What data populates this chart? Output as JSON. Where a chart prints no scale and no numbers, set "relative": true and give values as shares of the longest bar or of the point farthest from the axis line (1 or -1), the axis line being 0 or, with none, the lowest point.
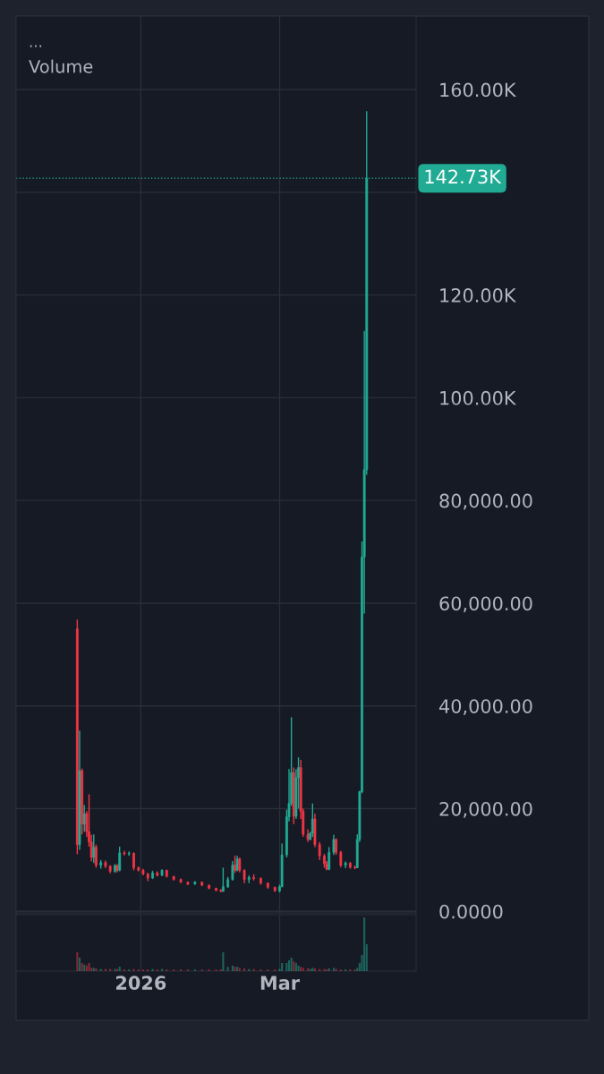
{
  "chart_data": [
    {
      "type": "candlestick",
      "annotations": [
        "..."
      ],
      "x": [
        "2025-12-05",
        "2025-12-06",
        "2025-12-07",
        "2025-12-08",
        "2025-12-09",
        "2025-12-10",
        "2025-12-11",
        "2025-12-12",
        "2025-12-13",
        "2025-12-15",
        "2025-12-17",
        "2025-12-19",
        "2025-12-21",
        "2025-12-22",
        "2025-12-23",
        "2025-12-25",
        "2025-12-27",
        "2025-12-29",
        "2025-12-31",
        "2026-01-02",
        "2026-01-04",
        "2026-01-06",
        "2026-01-08",
        "2026-01-10",
        "2026-01-12",
        "2026-01-15",
        "2026-01-18",
        "2026-01-21",
        "2026-01-24",
        "2026-01-27",
        "2026-01-30",
        "2026-02-02",
        "2026-02-04",
        "2026-02-05",
        "2026-02-07",
        "2026-02-09",
        "2026-02-10",
        "2026-02-11",
        "2026-02-12",
        "2026-02-14",
        "2026-02-16",
        "2026-02-18",
        "2026-02-21",
        "2026-02-24",
        "2026-02-27",
        "2026-03-01",
        "2026-03-02",
        "2026-03-04",
        "2026-03-05",
        "2026-03-06",
        "2026-03-07",
        "2026-03-08",
        "2026-03-09",
        "2026-03-10",
        "2026-03-11",
        "2026-03-13",
        "2026-03-14",
        "2026-03-15",
        "2026-03-16",
        "2026-03-18",
        "2026-03-20",
        "2026-03-21",
        "2026-03-22",
        "2026-03-24",
        "2026-03-25",
        "2026-03-27",
        "2026-03-29",
        "2026-03-31",
        "2026-04-02",
        "2026-04-03",
        "2026-04-04",
        "2026-04-05",
        "2026-04-06",
        "2026-04-07"
      ],
      "ohlc": [
        [
          55000,
          56800,
          11100,
          13000
        ],
        [
          13000,
          35200,
          12000,
          27400
        ],
        [
          27400,
          27800,
          15000,
          17000
        ],
        [
          17000,
          20700,
          15500,
          19000
        ],
        [
          19000,
          19500,
          14500,
          15500
        ],
        [
          15500,
          22800,
          12600,
          13500
        ],
        [
          13500,
          14900,
          9700,
          10500
        ],
        [
          10500,
          15000,
          9400,
          12500
        ],
        [
          12500,
          13000,
          8500,
          9000
        ],
        [
          9000,
          10000,
          8300,
          9500
        ],
        [
          9500,
          9900,
          8400,
          8800
        ],
        [
          8800,
          9000,
          7400,
          7800
        ],
        [
          7800,
          9200,
          7500,
          8900
        ],
        [
          8900,
          9200,
          7600,
          8000
        ],
        [
          8000,
          12600,
          7800,
          11400
        ],
        [
          11400,
          11800,
          10900,
          11200
        ],
        [
          11200,
          11700,
          10800,
          11300
        ],
        [
          11300,
          11500,
          8000,
          8500
        ],
        [
          8500,
          8700,
          7800,
          8000
        ],
        [
          8000,
          8300,
          7000,
          7300
        ],
        [
          7300,
          7500,
          5900,
          6500
        ],
        [
          6500,
          7900,
          6300,
          7500
        ],
        [
          7500,
          7800,
          6800,
          7000
        ],
        [
          7000,
          8200,
          6900,
          8000
        ],
        [
          8000,
          8100,
          6600,
          6800
        ],
        [
          6800,
          6900,
          6000,
          6200
        ],
        [
          6200,
          6400,
          5500,
          5700
        ],
        [
          5700,
          5800,
          5100,
          5300
        ],
        [
          5300,
          5900,
          5200,
          5700
        ],
        [
          5700,
          5800,
          4900,
          5100
        ],
        [
          5100,
          5200,
          4300,
          4500
        ],
        [
          4500,
          4600,
          3900,
          4100
        ],
        [
          4100,
          4300,
          3700,
          3900
        ],
        [
          3900,
          8500,
          3800,
          4800
        ],
        [
          4800,
          6700,
          4600,
          6200
        ],
        [
          6200,
          9800,
          6000,
          9000
        ],
        [
          9000,
          10900,
          7500,
          8000
        ],
        [
          8000,
          10800,
          7800,
          10200
        ],
        [
          10200,
          10500,
          7600,
          8000
        ],
        [
          8000,
          8200,
          5500,
          6200
        ],
        [
          6200,
          7000,
          5500,
          6600
        ],
        [
          6600,
          7200,
          6000,
          6400
        ],
        [
          6400,
          6600,
          5200,
          5500
        ],
        [
          5500,
          5600,
          4400,
          4700
        ],
        [
          4700,
          4800,
          3800,
          4000
        ],
        [
          4000,
          5200,
          3700,
          4800
        ],
        [
          4800,
          13200,
          4700,
          11000
        ],
        [
          11000,
          19800,
          10500,
          18400
        ],
        [
          18400,
          27700,
          17500,
          21000
        ],
        [
          21000,
          37800,
          20500,
          27000
        ],
        [
          27000,
          28000,
          17000,
          18500
        ],
        [
          18500,
          27700,
          18000,
          26000
        ],
        [
          26000,
          30000,
          20000,
          28000
        ],
        [
          28000,
          29500,
          18000,
          19500
        ],
        [
          19500,
          20000,
          14500,
          15000
        ],
        [
          15000,
          16000,
          13500,
          14000
        ],
        [
          14000,
          15500,
          13800,
          15200
        ],
        [
          15200,
          21000,
          14500,
          18000
        ],
        [
          18000,
          19000,
          12500,
          13000
        ],
        [
          13000,
          13500,
          10000,
          10800
        ],
        [
          10800,
          11200,
          8500,
          9300
        ],
        [
          9300,
          9800,
          8000,
          8200
        ],
        [
          8200,
          12500,
          8000,
          11500
        ],
        [
          11500,
          14900,
          11000,
          14000
        ],
        [
          14000,
          14200,
          11000,
          11500
        ],
        [
          11500,
          11800,
          8600,
          9000
        ],
        [
          9000,
          9700,
          8400,
          9400
        ],
        [
          9400,
          9600,
          8300,
          8600
        ],
        [
          8600,
          8900,
          8200,
          8500
        ],
        [
          8500,
          15000,
          8400,
          14000
        ],
        [
          14000,
          23500,
          13500,
          23300
        ],
        [
          23300,
          72000,
          23000,
          69000
        ],
        [
          69000,
          113000,
          58000,
          86000
        ],
        [
          86000,
          155800,
          85000,
          142730
        ]
      ],
      "colors": [
        "#f23645",
        "#22ab94",
        "#f23645",
        "#22ab94",
        "#f23645",
        "#f23645",
        "#f23645",
        "#22ab94",
        "#f23645",
        "#22ab94",
        "#f23645",
        "#f23645",
        "#22ab94",
        "#f23645",
        "#22ab94",
        "#f23645",
        "#22ab94",
        "#f23645",
        "#f23645",
        "#f23645",
        "#f23645",
        "#22ab94",
        "#f23645",
        "#22ab94",
        "#f23645",
        "#f23645",
        "#f23645",
        "#f23645",
        "#22ab94",
        "#f23645",
        "#f23645",
        "#f23645",
        "#f23645",
        "#22ab94",
        "#22ab94",
        "#22ab94",
        "#f23645",
        "#22ab94",
        "#f23645",
        "#f23645",
        "#22ab94",
        "#f23645",
        "#f23645",
        "#f23645",
        "#f23645",
        "#22ab94",
        "#22ab94",
        "#22ab94",
        "#22ab94",
        "#22ab94",
        "#f23645",
        "#22ab94",
        "#22ab94",
        "#f23645",
        "#f23645",
        "#f23645",
        "#22ab94",
        "#22ab94",
        "#f23645",
        "#f23645",
        "#f23645",
        "#f23645",
        "#22ab94",
        "#22ab94",
        "#f23645",
        "#f23645",
        "#22ab94",
        "#f23645",
        "#f23645",
        "#22ab94",
        "#22ab94",
        "#22ab94",
        "#22ab94",
        "#22ab94"
      ],
      "xlim": [
        "2025-11-09",
        "2026-04-28"
      ],
      "xticks": [
        {
          "value": "2026-01-01",
          "label": null
        },
        {
          "value": "2026-03-01",
          "label": null
        }
      ],
      "ylim": [
        -300,
        174300
      ],
      "yticks": [
        {
          "value": 0,
          "label": "0.0000"
        },
        {
          "value": 20000,
          "label": "20,000.00"
        },
        {
          "value": 40000,
          "label": "40,000.00"
        },
        {
          "value": 60000,
          "label": "60,000.00"
        },
        {
          "value": 80000,
          "label": "80,000.00"
        },
        {
          "value": 100000,
          "label": "100.00K"
        },
        {
          "value": 120000,
          "label": "120.00K"
        },
        {
          "value": 140000,
          "label": null
        },
        {
          "value": 160000,
          "label": "160.00K"
        }
      ],
      "ref_lines": [
        {
          "axis": "y",
          "value": 142730,
          "label": "142.73K",
          "color": "#22ab94",
          "line_style": "dotted"
        }
      ],
      "grid": true,
      "tick_labels": "y"
    },
    {
      "type": "bar",
      "title": "Volume",
      "relative": true,
      "x": [
        "2025-12-05",
        "2025-12-06",
        "2025-12-07",
        "2025-12-08",
        "2025-12-09",
        "2025-12-10",
        "2025-12-11",
        "2025-12-12",
        "2025-12-13",
        "2025-12-15",
        "2025-12-17",
        "2025-12-19",
        "2025-12-21",
        "2025-12-22",
        "2025-12-23",
        "2025-12-25",
        "2025-12-27",
        "2025-12-29",
        "2025-12-31",
        "2026-01-02",
        "2026-01-04",
        "2026-01-06",
        "2026-01-08",
        "2026-01-10",
        "2026-01-12",
        "2026-01-15",
        "2026-01-18",
        "2026-01-21",
        "2026-01-24",
        "2026-01-27",
        "2026-01-30",
        "2026-02-02",
        "2026-02-04",
        "2026-02-05",
        "2026-02-07",
        "2026-02-09",
        "2026-02-10",
        "2026-02-11",
        "2026-02-12",
        "2026-02-14",
        "2026-02-16",
        "2026-02-18",
        "2026-02-21",
        "2026-02-24",
        "2026-02-27",
        "2026-03-01",
        "2026-03-02",
        "2026-03-04",
        "2026-03-05",
        "2026-03-06",
        "2026-03-07",
        "2026-03-08",
        "2026-03-09",
        "2026-03-10",
        "2026-03-11",
        "2026-03-13",
        "2026-03-14",
        "2026-03-15",
        "2026-03-16",
        "2026-03-18",
        "2026-03-20",
        "2026-03-21",
        "2026-03-22",
        "2026-03-24",
        "2026-03-25",
        "2026-03-27",
        "2026-03-29",
        "2026-03-31",
        "2026-04-02",
        "2026-04-03",
        "2026-04-04",
        "2026-04-05",
        "2026-04-06",
        "2026-04-07"
      ],
      "values": [
        0.35,
        0.25,
        0.15,
        0.12,
        0.1,
        0.15,
        0.06,
        0.06,
        0.05,
        0.04,
        0.04,
        0.04,
        0.04,
        0.04,
        0.08,
        0.03,
        0.03,
        0.04,
        0.03,
        0.03,
        0.03,
        0.04,
        0.03,
        0.04,
        0.03,
        0.03,
        0.03,
        0.03,
        0.03,
        0.03,
        0.03,
        0.03,
        0.03,
        0.35,
        0.08,
        0.1,
        0.08,
        0.08,
        0.06,
        0.05,
        0.04,
        0.04,
        0.03,
        0.03,
        0.03,
        0.04,
        0.15,
        0.15,
        0.2,
        0.25,
        0.18,
        0.15,
        0.1,
        0.08,
        0.06,
        0.05,
        0.04,
        0.06,
        0.05,
        0.04,
        0.04,
        0.03,
        0.05,
        0.06,
        0.04,
        0.03,
        0.03,
        0.03,
        0.03,
        0.06,
        0.15,
        0.3,
        1,
        0.5
      ],
      "colors": [
        "#f23645",
        "#22ab94",
        "#f23645",
        "#22ab94",
        "#f23645",
        "#f23645",
        "#f23645",
        "#22ab94",
        "#f23645",
        "#22ab94",
        "#f23645",
        "#f23645",
        "#22ab94",
        "#f23645",
        "#22ab94",
        "#f23645",
        "#22ab94",
        "#f23645",
        "#f23645",
        "#f23645",
        "#f23645",
        "#22ab94",
        "#f23645",
        "#22ab94",
        "#f23645",
        "#f23645",
        "#f23645",
        "#f23645",
        "#22ab94",
        "#f23645",
        "#f23645",
        "#f23645",
        "#f23645",
        "#22ab94",
        "#22ab94",
        "#22ab94",
        "#f23645",
        "#22ab94",
        "#f23645",
        "#f23645",
        "#22ab94",
        "#f23645",
        "#f23645",
        "#f23645",
        "#f23645",
        "#22ab94",
        "#22ab94",
        "#22ab94",
        "#22ab94",
        "#22ab94",
        "#f23645",
        "#22ab94",
        "#22ab94",
        "#f23645",
        "#f23645",
        "#f23645",
        "#22ab94",
        "#22ab94",
        "#f23645",
        "#f23645",
        "#f23645",
        "#f23645",
        "#22ab94",
        "#22ab94",
        "#f23645",
        "#f23645",
        "#22ab94",
        "#f23645",
        "#f23645",
        "#22ab94",
        "#22ab94",
        "#22ab94",
        "#22ab94",
        "#22ab94"
      ],
      "xlim": [
        "2025-11-09",
        "2026-04-28"
      ],
      "xticks": [
        {
          "value": "2026-01-01",
          "label": "2026"
        },
        {
          "value": "2026-03-01",
          "label": "Mar"
        }
      ],
      "grid": "x",
      "tick_labels": "x"
    }
  ]
}
